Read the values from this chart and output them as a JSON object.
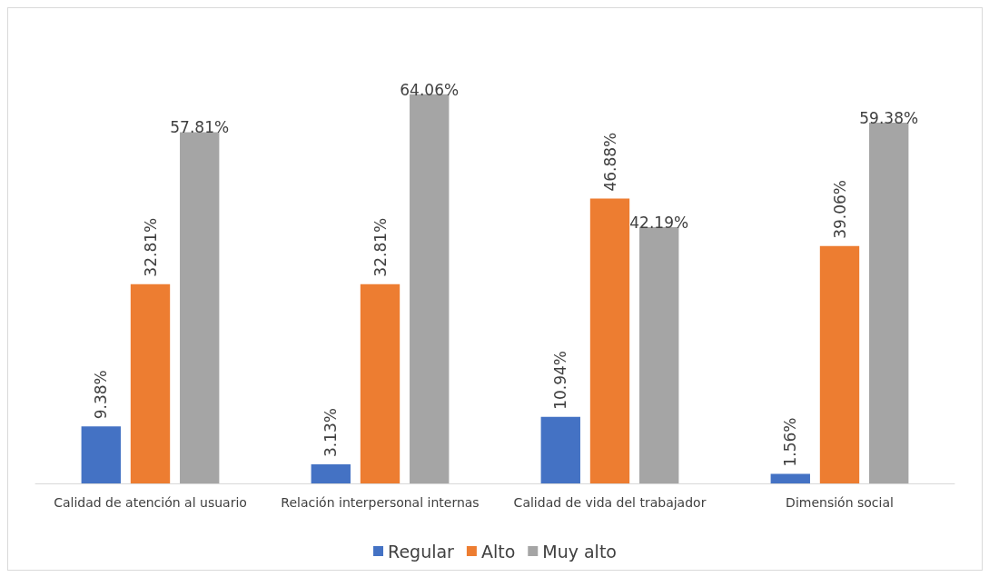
{
  "chart_data": {
    "type": "bar",
    "categories": [
      "Calidad de atención al usuario",
      "Relación interpersonal internas",
      "Calidad de vida del trabajador",
      "Dimensión social"
    ],
    "series": [
      {
        "name": "Regular",
        "color": "#4472c4",
        "values": [
          9.38,
          3.13,
          10.94,
          1.56
        ],
        "value_labels": [
          "9.38%",
          "3.13%",
          "10.94%",
          "1.56%"
        ]
      },
      {
        "name": "Alto",
        "color": "#ed7d31",
        "values": [
          32.81,
          32.81,
          46.88,
          39.06
        ],
        "value_labels": [
          "32.81%",
          "32.81%",
          "46.88%",
          "39.06%"
        ]
      },
      {
        "name": "Muy alto",
        "color": "#a5a5a5",
        "values": [
          57.81,
          64.06,
          42.19,
          59.38
        ],
        "value_labels": [
          "57.81%",
          "64.06%",
          "42.19%",
          "59.38%"
        ]
      }
    ],
    "legend": "bottom"
  }
}
